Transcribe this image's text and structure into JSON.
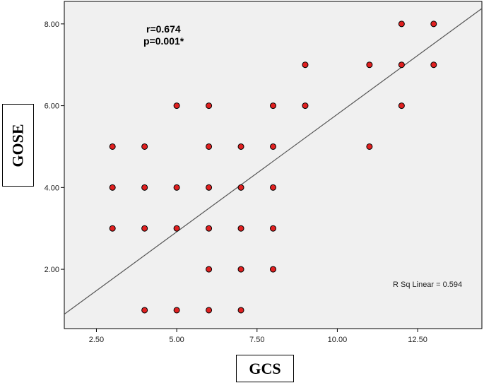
{
  "chart_data": {
    "type": "scatter",
    "title": "",
    "xlabel": "GCS",
    "ylabel": "GOSE",
    "xlim": [
      1.5,
      14.5
    ],
    "ylim": [
      0.55,
      8.55
    ],
    "xticks": [
      "2.50",
      "5.00",
      "7.50",
      "10.00",
      "12.50"
    ],
    "xtick_values": [
      2.5,
      5.0,
      7.5,
      10.0,
      12.5
    ],
    "yticks": [
      "2.00",
      "4.00",
      "6.00",
      "8.00"
    ],
    "ytick_values": [
      2.0,
      4.0,
      6.0,
      8.0
    ],
    "grid": false,
    "point_color": "#e02020",
    "point_edge_color": "#000000",
    "plot_background": "#f0f0f0",
    "line_color": "#555555",
    "points": [
      {
        "x": 3,
        "y": 5
      },
      {
        "x": 3,
        "y": 4
      },
      {
        "x": 3,
        "y": 3
      },
      {
        "x": 4,
        "y": 5
      },
      {
        "x": 4,
        "y": 4
      },
      {
        "x": 4,
        "y": 3
      },
      {
        "x": 4,
        "y": 1
      },
      {
        "x": 5,
        "y": 6
      },
      {
        "x": 5,
        "y": 4
      },
      {
        "x": 5,
        "y": 3
      },
      {
        "x": 5,
        "y": 1
      },
      {
        "x": 6,
        "y": 6
      },
      {
        "x": 6,
        "y": 5
      },
      {
        "x": 6,
        "y": 4
      },
      {
        "x": 6,
        "y": 3
      },
      {
        "x": 6,
        "y": 2
      },
      {
        "x": 6,
        "y": 1
      },
      {
        "x": 7,
        "y": 5
      },
      {
        "x": 7,
        "y": 4
      },
      {
        "x": 7,
        "y": 3
      },
      {
        "x": 7,
        "y": 2
      },
      {
        "x": 7,
        "y": 1
      },
      {
        "x": 8,
        "y": 6
      },
      {
        "x": 8,
        "y": 5
      },
      {
        "x": 8,
        "y": 4
      },
      {
        "x": 8,
        "y": 3
      },
      {
        "x": 8,
        "y": 2
      },
      {
        "x": 9,
        "y": 7
      },
      {
        "x": 9,
        "y": 6
      },
      {
        "x": 11,
        "y": 7
      },
      {
        "x": 11,
        "y": 5
      },
      {
        "x": 12,
        "y": 8
      },
      {
        "x": 12,
        "y": 7
      },
      {
        "x": 12,
        "y": 6
      },
      {
        "x": 13,
        "y": 8
      },
      {
        "x": 13,
        "y": 7
      }
    ],
    "fit_line": {
      "type": "linear",
      "intercept": 0.04,
      "slope": 0.575,
      "label": "R Sq Linear = 0.594"
    },
    "annotations": {
      "r": "r=0.674",
      "p": "p=0.001*"
    }
  }
}
